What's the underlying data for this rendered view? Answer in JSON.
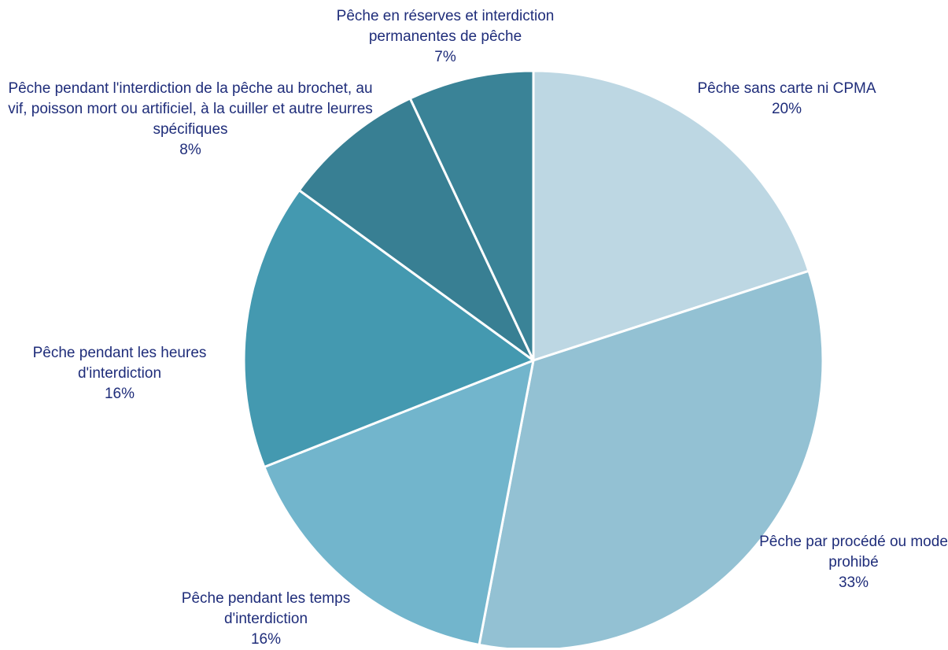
{
  "chart_data": {
    "type": "pie",
    "categories": [
      "Pêche sans carte ni CPMA",
      "Pêche par procédé ou mode prohibé",
      "Pêche pendant les temps d'interdiction",
      "Pêche pendant les heures d'interdiction",
      "Pêche pendant l'interdiction de la pêche au brochet, au vif, poisson mort ou artificiel, à la cuiller et autre leurres spécifiques",
      "Pêche en réserves et interdiction permanentes de pêche"
    ],
    "values": [
      20,
      33,
      16,
      16,
      8,
      7
    ],
    "value_labels": [
      "20%",
      "33%",
      "16%",
      "16%",
      "8%",
      "7%"
    ],
    "colors": [
      "#bdd7e3",
      "#93c1d3",
      "#72b5cc",
      "#4499b0",
      "#387f93",
      "#3a8397"
    ]
  }
}
